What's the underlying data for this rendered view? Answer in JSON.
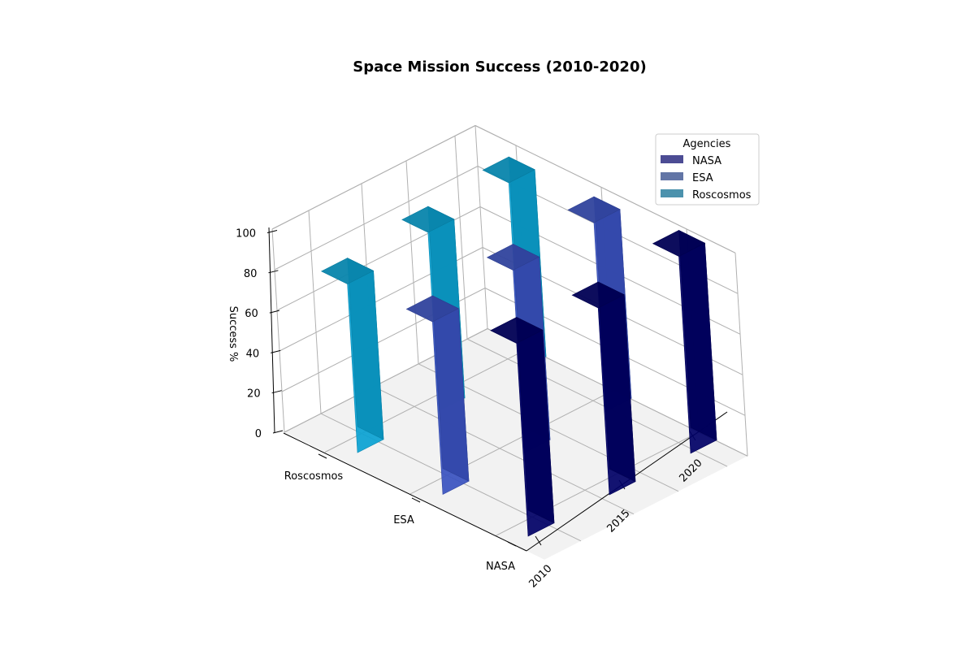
{
  "chart_data": {
    "type": "bar",
    "title": "Space Mission Success (2010-2020)",
    "xlabel": "",
    "ylabel": "",
    "zlabel": "Success %",
    "categories": [
      "2010",
      "2015",
      "2020"
    ],
    "agencies": [
      "NASA",
      "ESA",
      "Roscosmos"
    ],
    "zlim": [
      0,
      100
    ],
    "zticks": [
      0,
      20,
      40,
      60,
      80,
      100
    ],
    "grid": true,
    "legend_title": "Agencies",
    "legend_position": "top-right",
    "series": [
      {
        "name": "NASA",
        "values": [
          95,
          92,
          97
        ],
        "color": "#000066"
      },
      {
        "name": "ESA",
        "values": [
          85,
          90,
          93
        ],
        "color": "#3A52C0"
      },
      {
        "name": "Roscosmos",
        "values": [
          83,
          88,
          92
        ],
        "color": "#0AA2D2"
      }
    ]
  }
}
